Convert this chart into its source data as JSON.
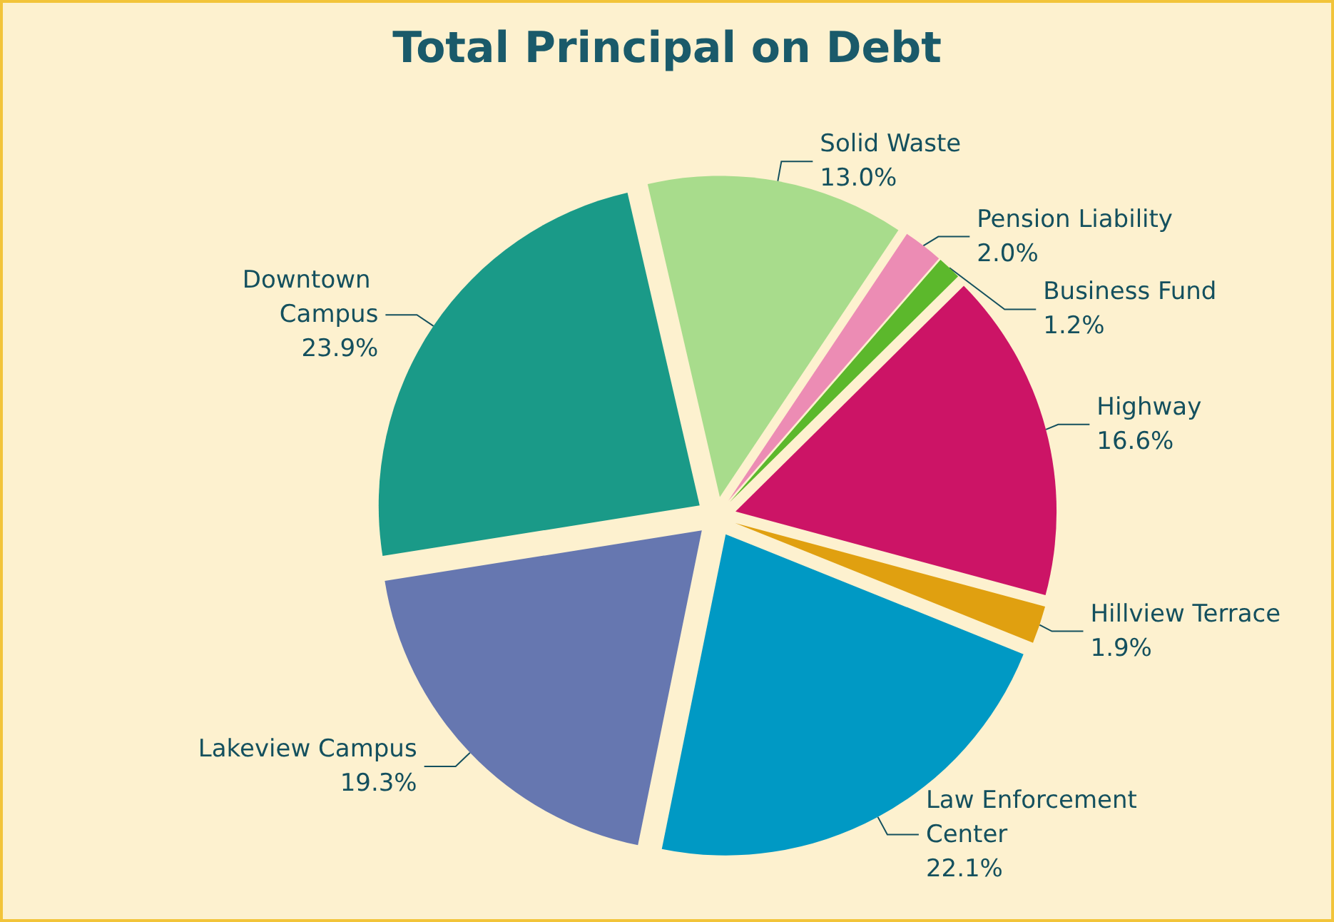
{
  "chart_data": {
    "type": "pie",
    "title": "Total Principal on Debt",
    "categories": [
      "Solid Waste",
      "Pension Liability",
      "Business Fund",
      "Highway",
      "Hillview Terrace",
      "Law Enforcement Center",
      "Lakeview Campus",
      "Downtown Campus"
    ],
    "values": [
      13.0,
      2.0,
      1.2,
      16.6,
      1.9,
      22.1,
      19.3,
      23.9
    ],
    "value_labels": [
      "13.0%",
      "2.0%",
      "1.2%",
      "16.6%",
      "1.9%",
      "22.1%",
      "19.3%",
      "23.9%"
    ],
    "colors": [
      "#a8dc8c",
      "#ec8cb4",
      "#5cb82c",
      "#cc1466",
      "#e0a010",
      "#0099c4",
      "#6677b0",
      "#1a9a88"
    ],
    "legend": false
  }
}
